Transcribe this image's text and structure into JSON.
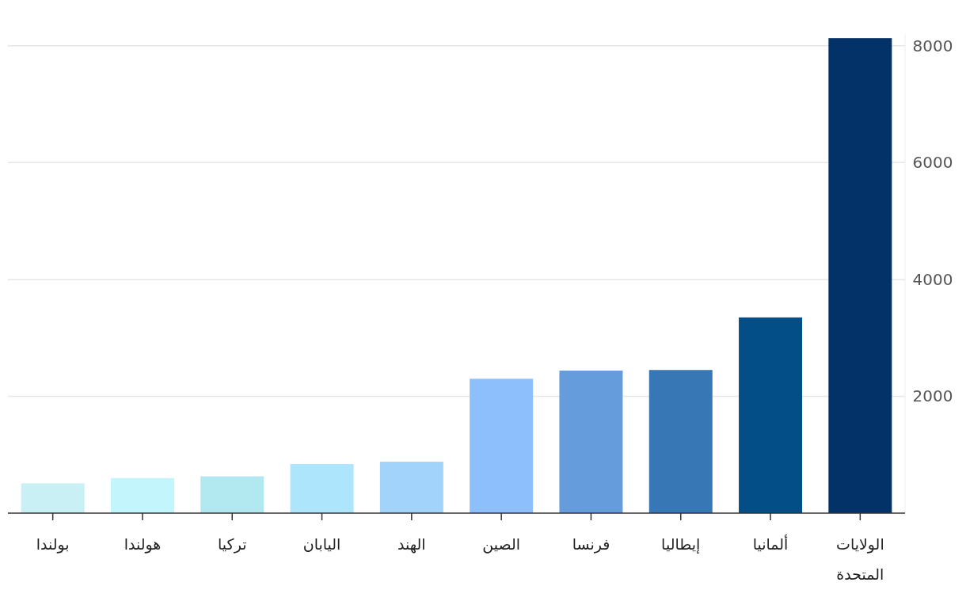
{
  "chart_data": {
    "type": "bar",
    "categories": [
      "بولندا",
      "هولندا",
      "تركيا",
      "اليابان",
      "الهند",
      "الصين",
      "فرنسا",
      "إيطاليا",
      "ألمانيا",
      "الولايات المتحدة"
    ],
    "values": [
      510,
      600,
      630,
      840,
      880,
      2300,
      2440,
      2450,
      3350,
      8130
    ],
    "colors": [
      "#c8f0f5",
      "#c2f5fc",
      "#b2e8f0",
      "#ade6fc",
      "#a2d3fa",
      "#8dbffc",
      "#659ddc",
      "#3777b6",
      "#034e86",
      "#033269"
    ],
    "ylim": [
      0,
      8200
    ],
    "yticks": [
      2000,
      4000,
      6000,
      8000
    ],
    "grid": "y"
  }
}
